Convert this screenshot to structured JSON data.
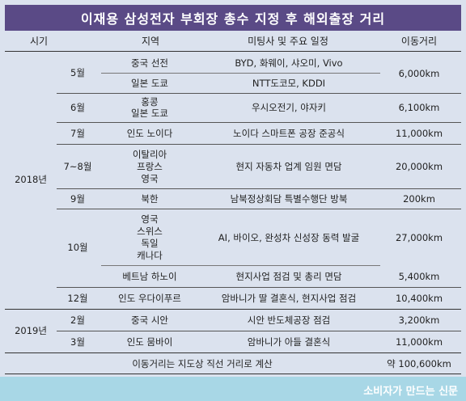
{
  "title": "이재용 삼성전자 부회장 총수 지정 후 해외출장 거리",
  "headers": {
    "period": "시기",
    "region": "지역",
    "meeting": "미팅사 및 주요 일정",
    "distance": "이동거리"
  },
  "years": {
    "y2018": "2018년",
    "y2019": "2019년"
  },
  "months": {
    "m5": "5월",
    "m6": "6월",
    "m7": "7월",
    "m78": "7~8월",
    "m9": "9월",
    "m10": "10월",
    "m12": "12월",
    "m2": "2월",
    "m3": "3월"
  },
  "regions": {
    "r1": "중국 선전",
    "r2": "일본 도쿄",
    "r3a": "홍콩",
    "r3b": "일본 도쿄",
    "r4": "인도 노이다",
    "r5a": "이탈리아",
    "r5b": "프랑스",
    "r5c": "영국",
    "r6": "북한",
    "r7a": "영국",
    "r7b": "스위스",
    "r7c": "독일",
    "r7d": "캐나다",
    "r8": "베트남 하노이",
    "r9": "인도 우다이푸르",
    "r10": "중국 시안",
    "r11": "인도 뭄바이"
  },
  "meetings": {
    "r1": "BYD, 화웨이, 샤오미, Vivo",
    "r2": "NTT도코모, KDDI",
    "r3": "우시오전기, 야자키",
    "r4": "노이다 스마트폰 공장 준공식",
    "r5": "현지 자동차 업계 임원 면담",
    "r6": "남북정상회담 특별수행단 방북",
    "r7": "AI, 바이오, 완성차 신성장 동력 발굴",
    "r8": "현지사업 점검 및 총리 면담",
    "r9": "암바니가 딸 결혼식, 현지사업 점검",
    "r10": "시안 반도체공장 점검",
    "r11": "암바니가 아들  결혼식"
  },
  "distances": {
    "d5": "6,000km",
    "d6": "6,100km",
    "d7": "11,000km",
    "d78": "20,000km",
    "d9": "200km",
    "d10": "27,000km",
    "d10b": "5,400km",
    "d12": "10,400km",
    "d2": "3,200km",
    "d3": "11,000km"
  },
  "note": {
    "text": "이동거리는 지도상 직선 거리로 계산",
    "total": "약 100,600km"
  },
  "footer": {
    "brand": "소비자가 만드는 신문"
  }
}
